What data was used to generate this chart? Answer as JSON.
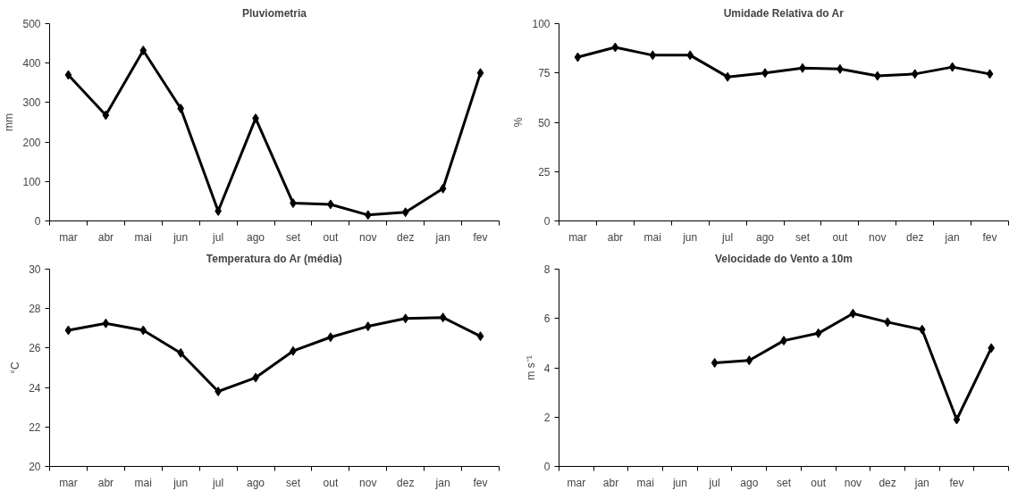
{
  "chart_data": [
    {
      "type": "line",
      "title": "Pluviometria",
      "ylabel": "mm",
      "categories": [
        "mar",
        "abr",
        "mai",
        "jun",
        "jul",
        "ago",
        "set",
        "out",
        "nov",
        "dez",
        "jan",
        "fev"
      ],
      "series": [
        {
          "color": "#000000",
          "values": [
            370,
            268,
            432,
            285,
            25,
            260,
            45,
            42,
            15,
            22,
            82,
            375
          ]
        }
      ],
      "ylim": [
        0,
        500
      ],
      "yticks": [
        0,
        100,
        200,
        300,
        400,
        500
      ],
      "marker": "diamond",
      "grid": false
    },
    {
      "type": "line",
      "title": "Umidade Relativa do Ar",
      "ylabel": "%",
      "categories": [
        "mar",
        "abr",
        "mai",
        "jun",
        "jul",
        "ago",
        "set",
        "out",
        "nov",
        "dez",
        "jan",
        "fev"
      ],
      "series": [
        {
          "color": "#000000",
          "values": [
            83,
            88,
            84,
            84,
            73,
            75,
            77.5,
            77,
            73.5,
            74.5,
            78,
            74.5
          ]
        }
      ],
      "ylim": [
        0,
        100
      ],
      "yticks": [
        0,
        25,
        50,
        75,
        100
      ],
      "marker": "diamond",
      "grid": false
    },
    {
      "type": "line",
      "title": "Temperatura do Ar (média)",
      "ylabel": "°C",
      "categories": [
        "mar",
        "abr",
        "mai",
        "jun",
        "jul",
        "ago",
        "set",
        "out",
        "nov",
        "dez",
        "jan",
        "fev"
      ],
      "series": [
        {
          "color": "#000000",
          "values": [
            26.9,
            27.25,
            26.9,
            25.75,
            23.8,
            24.5,
            25.85,
            26.55,
            27.1,
            27.5,
            27.55,
            26.6
          ]
        }
      ],
      "ylim": [
        20,
        30
      ],
      "yticks": [
        20,
        22,
        24,
        26,
        28,
        30
      ],
      "marker": "diamond",
      "grid": false
    },
    {
      "type": "line",
      "title": "Velocidade do Vento a 10m",
      "ylabel": "m s⁻¹",
      "categories": [
        "mar",
        "abr",
        "mai",
        "jun",
        "jul",
        "ago",
        "set",
        "out",
        "nov",
        "dez",
        "jan",
        "fev",
        null
      ],
      "series": [
        {
          "color": "#000000",
          "values": [
            null,
            null,
            null,
            null,
            4.2,
            4.3,
            5.1,
            5.4,
            6.2,
            5.85,
            5.55,
            1.9,
            4.8
          ]
        }
      ],
      "ylim": [
        0,
        8
      ],
      "yticks": [
        0,
        2,
        4,
        6,
        8
      ],
      "marker": "diamond",
      "grid": false
    }
  ]
}
